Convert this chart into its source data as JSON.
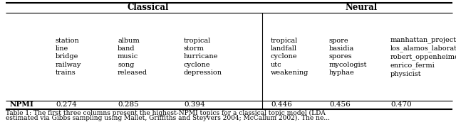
{
  "classical_header": "Classical",
  "neural_header": "Neural",
  "topic_words": [
    "station\nline\nbridge\nrailway\ntrains",
    "album\nband\nmusic\nsong\nreleased",
    "tropical\nstorm\nhurricane\ncyclone\ndepression",
    "tropical\nlandfall\ncyclone\nutc\nweakening",
    "spore\nbasidia\nspores\nmycologist\nhyphae",
    "manhattan_project\nlos_alamos_laboratory\nrobert_oppenheimer\nenrico_fermi\nphysicist"
  ],
  "npmi_label": "NPMI",
  "npmi_values": [
    "0.274",
    "0.285",
    "0.394",
    "0.446",
    "0.456",
    "0.470"
  ],
  "caption_line1": "Table 1: The first three columns present the highest-NPMI topics for a classical topic model (LDA",
  "caption_line2": "estimated via Gibbs sampling using Mallet, Griffiths and Steyvers 2004; McCallum 2002). The ne...",
  "background": "#ffffff",
  "line_color": "black",
  "thick_lw": 1.5,
  "thin_lw": 0.8,
  "header_fontsize": 8.5,
  "data_fontsize": 7.0,
  "caption_fontsize": 6.5,
  "npmi_fontsize": 7.5
}
